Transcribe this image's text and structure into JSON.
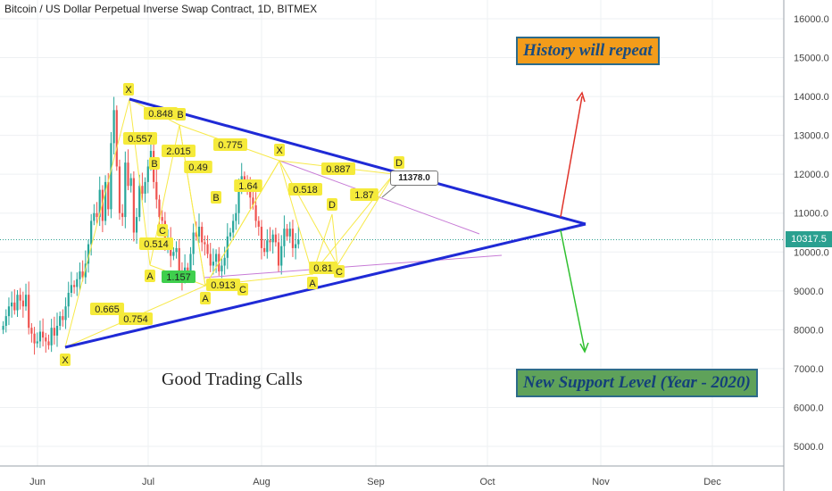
{
  "header": {
    "title": "Bitcoin / US Dollar Perpetual Inverse Swap Contract, 1D, BITMEX"
  },
  "banners": {
    "top": "History will repeat",
    "bottom": "New Support Level (Year - 2020)"
  },
  "caption": "Good Trading Calls",
  "price": {
    "current": "10317.5",
    "callout": "11378.0"
  },
  "colors": {
    "up": "#26a69a",
    "down": "#ef5350",
    "trendline": "#1f2ad6",
    "pattern": "#f7e94a",
    "projection_up": "#e0332a",
    "projection_down": "#2fc02f",
    "channel": "#c77bd6",
    "current_line": "#2aa090"
  },
  "chart_data": {
    "type": "candlestick",
    "x_ticks": [
      "Jun",
      "Jul",
      "Aug",
      "Sep",
      "Oct",
      "Nov",
      "Dec"
    ],
    "y_ticks": [
      "16000.0",
      "15000.0",
      "14000.0",
      "13000.0",
      "12000.0",
      "11000.0",
      "10000.0",
      "9000.0",
      "8000.0",
      "7000.0",
      "6000.0",
      "5000.0"
    ],
    "ylim": [
      4700,
      16400
    ],
    "current_price": 10317.5,
    "closes": [
      8100,
      8350,
      8600,
      8700,
      8500,
      8900,
      8750,
      8600,
      8900,
      8050,
      7900,
      7650,
      7700,
      7950,
      7800,
      7700,
      7600,
      8050,
      7850,
      8100,
      8350,
      8250,
      8600,
      8950,
      9150,
      9100,
      9300,
      9500,
      9350,
      9700,
      10200,
      10800,
      11000,
      10900,
      11600,
      10800,
      11800,
      11100,
      12800,
      13650,
      12200,
      11000,
      10900,
      12300,
      11700,
      11900,
      10500,
      10900,
      11700,
      11500,
      11800,
      12200,
      12600,
      11800,
      11350,
      10900,
      10800,
      10200,
      10300,
      9900,
      10000,
      10100,
      9450,
      9300,
      9600,
      9500,
      9950,
      10500,
      10400,
      10650,
      10250,
      10200,
      9950,
      9650,
      9750,
      9950,
      9500,
      9650,
      9850,
      10400,
      10500,
      10800,
      11000,
      11600,
      11950,
      11800,
      11700,
      11400,
      11200,
      10800,
      10650,
      10100,
      10000,
      10300,
      10250,
      10450,
      10250,
      9650,
      10150,
      10600,
      10400,
      10600,
      10100,
      10200,
      10317
    ],
    "annotations": {
      "ratios": [
        "0.848",
        "0.557",
        "2.015",
        "0.49",
        "0.775",
        "1.64",
        "0.518",
        "0.887",
        "1.87",
        "0.514",
        "0.665",
        "0.754",
        "1.157",
        "0.913",
        "0.81"
      ],
      "points": [
        "X",
        "D",
        "B",
        "C",
        "A",
        "X",
        "B",
        "A",
        "C",
        "X",
        "B",
        "D",
        "A",
        "C",
        "A",
        "C"
      ]
    }
  }
}
